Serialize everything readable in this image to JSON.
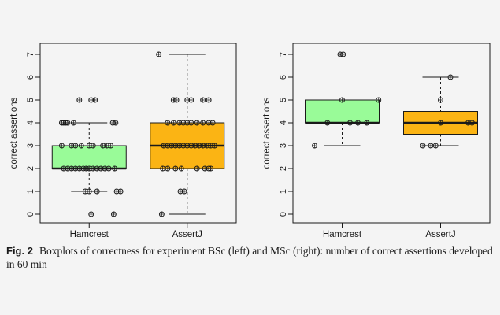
{
  "figure": {
    "caption_label": "Fig. 2",
    "caption_text": "Boxplots of correctness for experiment BSc (left) and MSc (right): number of correct assertions developed in 60 min"
  },
  "colors": {
    "hamcrest": "#99fb98",
    "assertj": "#fbb414",
    "axis": "#1a1a1a"
  },
  "chart_data": [
    {
      "type": "box",
      "title": "",
      "xlabel": "",
      "ylabel": "correct assertions",
      "ylim": [
        0,
        7
      ],
      "yticks": [
        "0",
        "1",
        "2",
        "3",
        "4",
        "5",
        "6",
        "7"
      ],
      "categories": [
        "Hamcrest",
        "AssertJ"
      ],
      "boxes": [
        {
          "category": "Hamcrest",
          "color": "#99fb98",
          "whisker_low": 1,
          "q1": 2,
          "median": 2,
          "q3": 3,
          "whisker_high": 4,
          "points": [
            {
              "x": 1.02,
              "y": 0
            },
            {
              "x": 1.25,
              "y": 0
            },
            {
              "x": 0.96,
              "y": 1
            },
            {
              "x": 1.0,
              "y": 1
            },
            {
              "x": 1.08,
              "y": 1
            },
            {
              "x": 1.28,
              "y": 1
            },
            {
              "x": 1.32,
              "y": 1
            },
            {
              "x": 0.74,
              "y": 2
            },
            {
              "x": 0.78,
              "y": 2
            },
            {
              "x": 0.82,
              "y": 2
            },
            {
              "x": 0.86,
              "y": 2
            },
            {
              "x": 0.9,
              "y": 2
            },
            {
              "x": 0.94,
              "y": 2
            },
            {
              "x": 0.97,
              "y": 2
            },
            {
              "x": 1.0,
              "y": 2
            },
            {
              "x": 1.04,
              "y": 2
            },
            {
              "x": 1.08,
              "y": 2
            },
            {
              "x": 1.12,
              "y": 2
            },
            {
              "x": 1.16,
              "y": 2
            },
            {
              "x": 1.2,
              "y": 2
            },
            {
              "x": 1.26,
              "y": 2
            },
            {
              "x": 0.72,
              "y": 3
            },
            {
              "x": 0.82,
              "y": 3
            },
            {
              "x": 0.86,
              "y": 3
            },
            {
              "x": 0.92,
              "y": 3
            },
            {
              "x": 1.0,
              "y": 3
            },
            {
              "x": 1.04,
              "y": 3
            },
            {
              "x": 1.14,
              "y": 3
            },
            {
              "x": 1.18,
              "y": 3
            },
            {
              "x": 1.22,
              "y": 3
            },
            {
              "x": 0.72,
              "y": 4
            },
            {
              "x": 0.74,
              "y": 4
            },
            {
              "x": 0.76,
              "y": 4
            },
            {
              "x": 0.78,
              "y": 4
            },
            {
              "x": 0.84,
              "y": 4
            },
            {
              "x": 1.24,
              "y": 4
            },
            {
              "x": 1.27,
              "y": 4
            },
            {
              "x": 0.9,
              "y": 5
            },
            {
              "x": 1.02,
              "y": 5
            },
            {
              "x": 1.06,
              "y": 5
            }
          ]
        },
        {
          "category": "AssertJ",
          "color": "#fbb414",
          "whisker_low": 0,
          "q1": 2,
          "median": 3,
          "q3": 4,
          "whisker_high": 7,
          "points": [
            {
              "x": 1.74,
              "y": 0
            },
            {
              "x": 1.93,
              "y": 1
            },
            {
              "x": 1.97,
              "y": 1
            },
            {
              "x": 1.75,
              "y": 2
            },
            {
              "x": 1.8,
              "y": 2
            },
            {
              "x": 1.88,
              "y": 2
            },
            {
              "x": 1.94,
              "y": 2
            },
            {
              "x": 2.1,
              "y": 2
            },
            {
              "x": 2.18,
              "y": 2
            },
            {
              "x": 2.22,
              "y": 2
            },
            {
              "x": 2.24,
              "y": 2
            },
            {
              "x": 1.76,
              "y": 3
            },
            {
              "x": 1.8,
              "y": 3
            },
            {
              "x": 1.84,
              "y": 3
            },
            {
              "x": 1.88,
              "y": 3
            },
            {
              "x": 1.92,
              "y": 3
            },
            {
              "x": 1.96,
              "y": 3
            },
            {
              "x": 2.0,
              "y": 3
            },
            {
              "x": 2.04,
              "y": 3
            },
            {
              "x": 2.08,
              "y": 3
            },
            {
              "x": 2.12,
              "y": 3
            },
            {
              "x": 2.16,
              "y": 3
            },
            {
              "x": 2.2,
              "y": 3
            },
            {
              "x": 2.24,
              "y": 3
            },
            {
              "x": 2.28,
              "y": 3
            },
            {
              "x": 1.8,
              "y": 4
            },
            {
              "x": 1.86,
              "y": 4
            },
            {
              "x": 1.92,
              "y": 4
            },
            {
              "x": 1.96,
              "y": 4
            },
            {
              "x": 2.0,
              "y": 4
            },
            {
              "x": 2.04,
              "y": 4
            },
            {
              "x": 2.1,
              "y": 4
            },
            {
              "x": 2.16,
              "y": 4
            },
            {
              "x": 2.22,
              "y": 4
            },
            {
              "x": 2.26,
              "y": 4
            },
            {
              "x": 1.86,
              "y": 5
            },
            {
              "x": 1.89,
              "y": 5
            },
            {
              "x": 2.0,
              "y": 5
            },
            {
              "x": 2.04,
              "y": 5
            },
            {
              "x": 2.16,
              "y": 5
            },
            {
              "x": 2.22,
              "y": 5
            },
            {
              "x": 1.71,
              "y": 7
            }
          ]
        }
      ]
    },
    {
      "type": "box",
      "title": "",
      "xlabel": "",
      "ylabel": "correct assertions",
      "ylim": [
        0,
        7
      ],
      "yticks": [
        "0",
        "1",
        "2",
        "3",
        "4",
        "5",
        "6",
        "7"
      ],
      "categories": [
        "Hamcrest",
        "AssertJ"
      ],
      "boxes": [
        {
          "category": "Hamcrest",
          "color": "#99fb98",
          "whisker_low": 3,
          "q1": 4,
          "median": 4,
          "q3": 5,
          "whisker_high": 5,
          "points": [
            {
              "x": 0.72,
              "y": 3
            },
            {
              "x": 0.85,
              "y": 4
            },
            {
              "x": 1.08,
              "y": 4
            },
            {
              "x": 1.16,
              "y": 4
            },
            {
              "x": 1.25,
              "y": 4
            },
            {
              "x": 1.0,
              "y": 5
            },
            {
              "x": 1.37,
              "y": 5
            },
            {
              "x": 0.98,
              "y": 7
            },
            {
              "x": 1.01,
              "y": 7
            }
          ]
        },
        {
          "category": "AssertJ",
          "color": "#fbb414",
          "whisker_low": 3,
          "q1": 3.5,
          "median": 4,
          "q3": 4.5,
          "whisker_high": 6,
          "points": [
            {
              "x": 1.82,
              "y": 3
            },
            {
              "x": 1.9,
              "y": 3
            },
            {
              "x": 1.95,
              "y": 3
            },
            {
              "x": 2.0,
              "y": 4
            },
            {
              "x": 2.28,
              "y": 4
            },
            {
              "x": 2.32,
              "y": 4
            },
            {
              "x": 2.0,
              "y": 5
            },
            {
              "x": 2.1,
              "y": 6
            }
          ]
        }
      ]
    }
  ]
}
